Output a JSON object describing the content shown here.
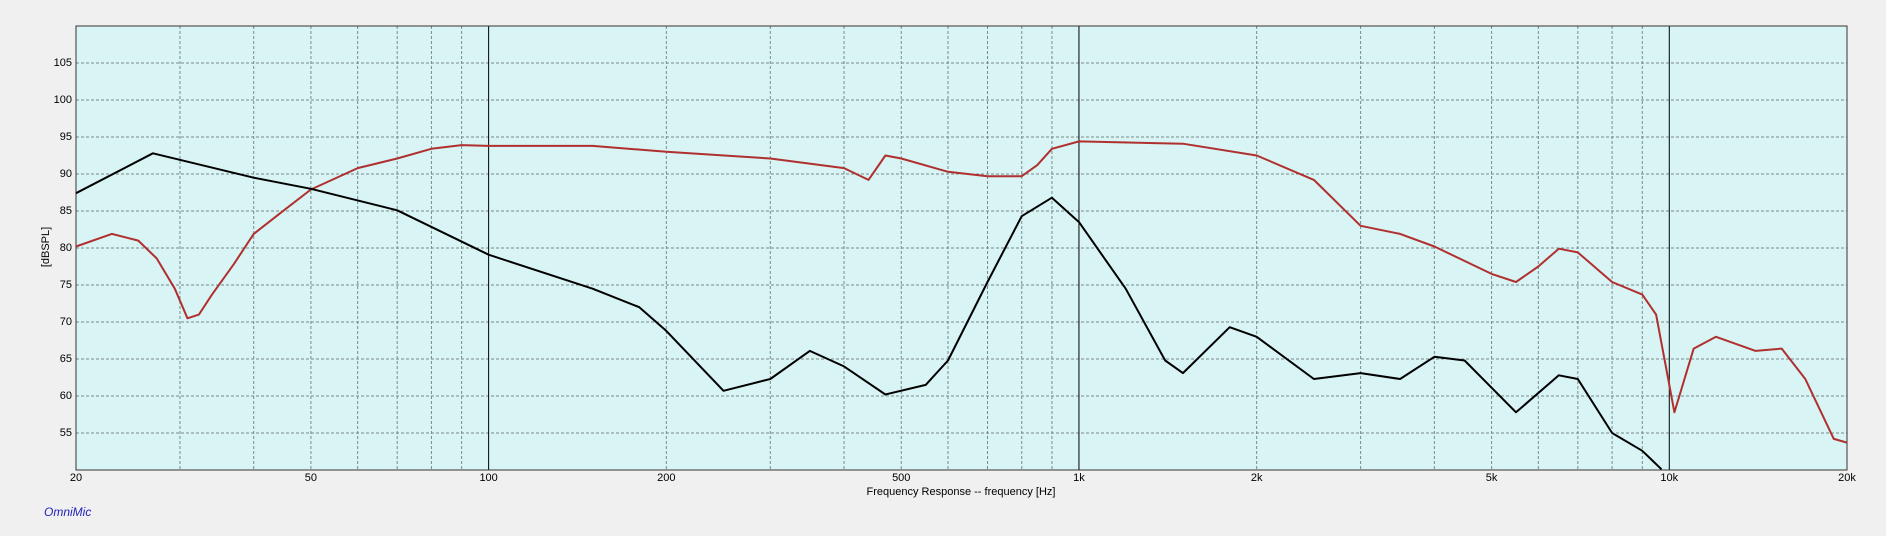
{
  "chart_data": {
    "type": "line",
    "x_label": "Frequency Response -- frequency [Hz]",
    "y_label": "[dBSPL]",
    "brand": "OmniMic",
    "xscale": "log",
    "grid": true,
    "xlim": [
      20,
      20000
    ],
    "ylim": [
      50,
      110
    ],
    "yticks": [
      55,
      60,
      65,
      70,
      75,
      80,
      85,
      90,
      95,
      100,
      105
    ],
    "xticks": [
      20,
      50,
      100,
      200,
      500,
      {
        "value": 1000,
        "label": "1k"
      },
      {
        "value": 2000,
        "label": "2k"
      },
      {
        "value": 5000,
        "label": "5k"
      },
      {
        "value": 10000,
        "label": "10k"
      },
      {
        "value": 20000,
        "label": "20k"
      }
    ],
    "xminor": [
      30,
      40,
      60,
      70,
      80,
      90,
      300,
      400,
      600,
      700,
      800,
      900,
      3000,
      4000,
      6000,
      7000,
      8000,
      9000
    ],
    "series": [
      {
        "color": "#b03030",
        "x": [
          20,
          23,
          25.5,
          27.4,
          29.4,
          30.9,
          32.3,
          34,
          37,
          40,
          45,
          50,
          60,
          70,
          80,
          90,
          100,
          150,
          200,
          300,
          400,
          440,
          470,
          500,
          600,
          700,
          800,
          850,
          900,
          1000,
          1500,
          2000,
          2500,
          3000,
          3500,
          4000,
          5000,
          5500,
          6000,
          6500,
          7000,
          8000,
          9000,
          9500,
          10000,
          10200,
          11000,
          12000,
          14000,
          15500,
          17000,
          19000,
          20000
        ],
        "values": [
          80.2,
          81.9,
          81,
          78.6,
          74.5,
          70.5,
          71,
          73.7,
          77.8,
          81.9,
          85.1,
          87.9,
          90.8,
          92.1,
          93.4,
          93.9,
          93.8,
          93.8,
          93,
          92.1,
          90.8,
          89.2,
          92.5,
          92.1,
          90.3,
          89.7,
          89.7,
          91.2,
          93.4,
          94.4,
          94.1,
          92.5,
          89.2,
          83,
          81.9,
          80.2,
          76.5,
          75.4,
          77.5,
          79.9,
          79.4,
          75.4,
          73.7,
          71,
          61.5,
          57.8,
          66.4,
          68,
          66.1,
          66.4,
          62.3,
          54.2,
          53.7
        ]
      },
      {
        "color": "#000000",
        "x": [
          20,
          27,
          40,
          50,
          70,
          100,
          150,
          180,
          200,
          250,
          300,
          350,
          400,
          470,
          550,
          600,
          700,
          800,
          900,
          1000,
          1200,
          1400,
          1500,
          1800,
          2000,
          2500,
          3000,
          3500,
          4000,
          4500,
          5500,
          6500,
          7000,
          8000,
          9000,
          9700
        ],
        "values": [
          87.4,
          92.8,
          89.5,
          88,
          85.1,
          79.1,
          74.5,
          72,
          68.8,
          60.7,
          62.3,
          66.1,
          64,
          60.2,
          61.5,
          64.8,
          75.4,
          84.3,
          86.8,
          83.5,
          74.5,
          64.8,
          63.1,
          69.3,
          68,
          62.3,
          63.1,
          62.3,
          65.3,
          64.8,
          57.8,
          62.8,
          62.3,
          55,
          52.6,
          50.1
        ]
      }
    ]
  }
}
